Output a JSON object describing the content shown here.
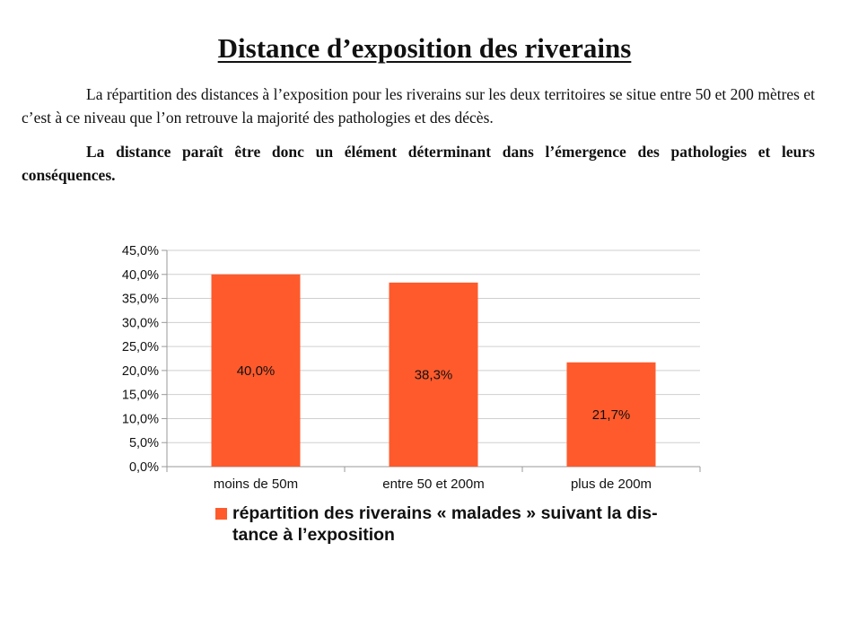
{
  "document": {
    "title": "Distance d’exposition des riverains",
    "paragraph1": "La répartition des distances à l’exposition pour les riverains sur les deux territoires se situe entre 50 et 200 mètres et c’est à ce niveau que l’on retrouve la majorité des pathologies et des décès.",
    "paragraph2": "La distance paraît être donc un élément déterminant dans l’émergence des pathologies et leurs conséquences."
  },
  "legend": {
    "line1": "répartition des riverains « malades » suivant la dis-",
    "line2": "tance à l’exposition"
  },
  "chart_data": {
    "type": "bar",
    "categories": [
      "moins de 50m",
      "entre 50 et 200m",
      "plus de  200m"
    ],
    "series": [
      {
        "name": "répartition des riverains « malades » suivant la distance à l’exposition",
        "values": [
          40.0,
          38.3,
          21.7
        ],
        "data_labels": [
          "40,0%",
          "38,3%",
          "21,7%"
        ],
        "color": "#ff5a2c"
      }
    ],
    "yticks": [
      "0,0%",
      "5,0%",
      "10,0%",
      "15,0%",
      "20,0%",
      "25,0%",
      "30,0%",
      "35,0%",
      "40,0%",
      "45,0%"
    ],
    "ylim": [
      0,
      45
    ],
    "ystep": 5,
    "grid": true,
    "legend_position": "bottom",
    "title": "",
    "xlabel": "",
    "ylabel": ""
  },
  "colors": {
    "bar": "#ff5a2c",
    "grid": "#cfcfcf",
    "axis": "#9a9a9a"
  }
}
